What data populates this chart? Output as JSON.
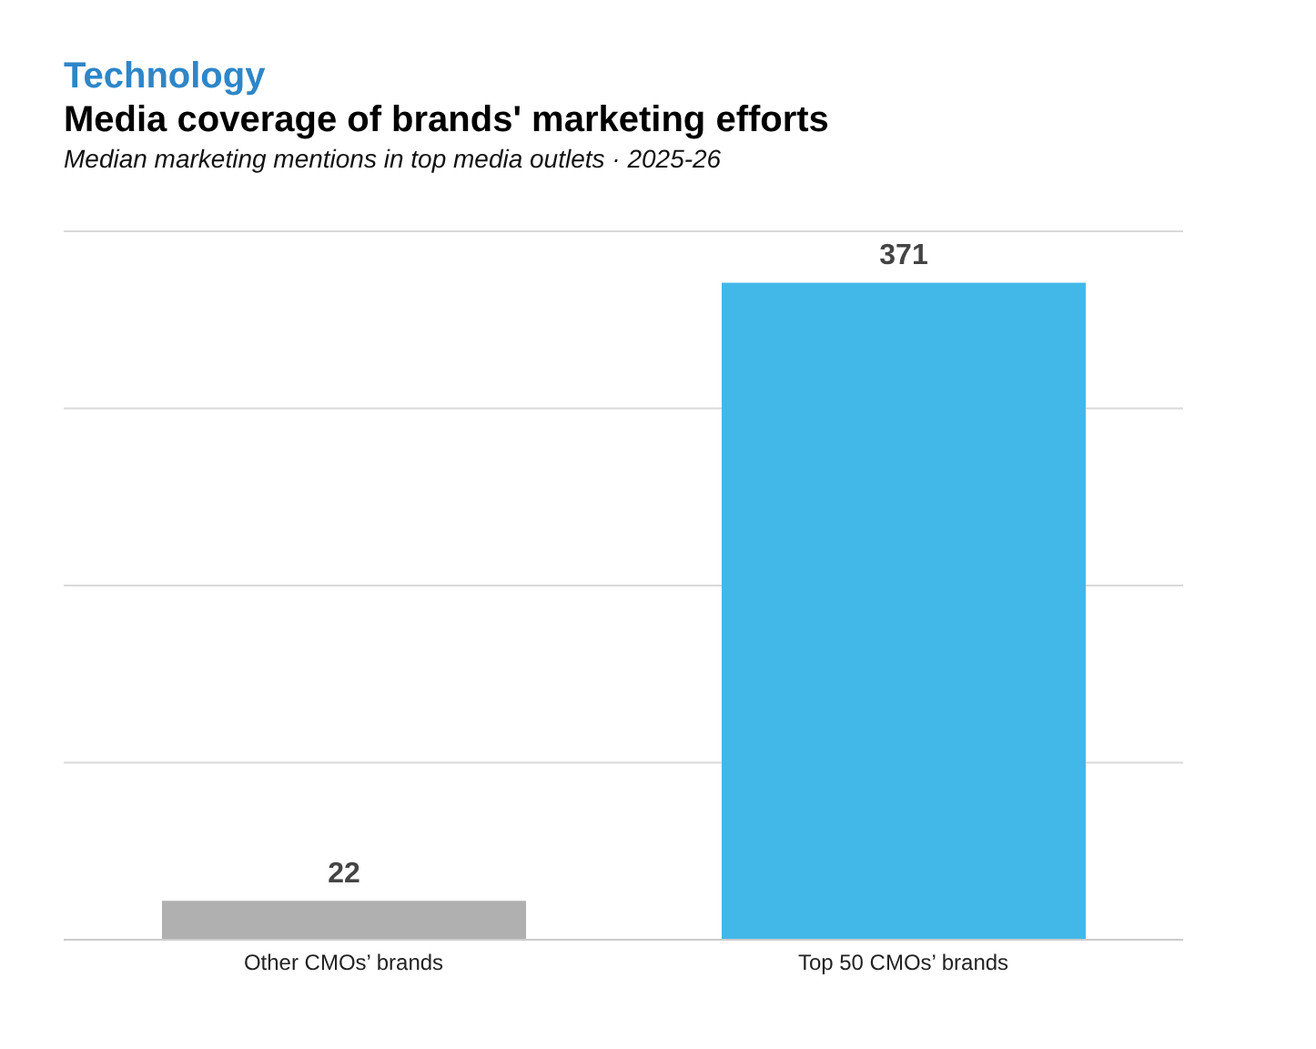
{
  "chart_data": {
    "type": "bar",
    "annotations": [
      "Technology"
    ],
    "title": "Media coverage of brands' marketing efforts",
    "subtitle": "Median marketing mentions in top media outlets · 2025-26",
    "categories": [
      "Other CMOs’ brands",
      "Top 50 CMOs’ brands"
    ],
    "values": [
      22,
      371
    ],
    "colors": [
      "#b0b0b0",
      "#42b8e8"
    ],
    "ylim": [
      0,
      400
    ],
    "grid": "y",
    "tick_labels": "x",
    "data_labels": true
  }
}
